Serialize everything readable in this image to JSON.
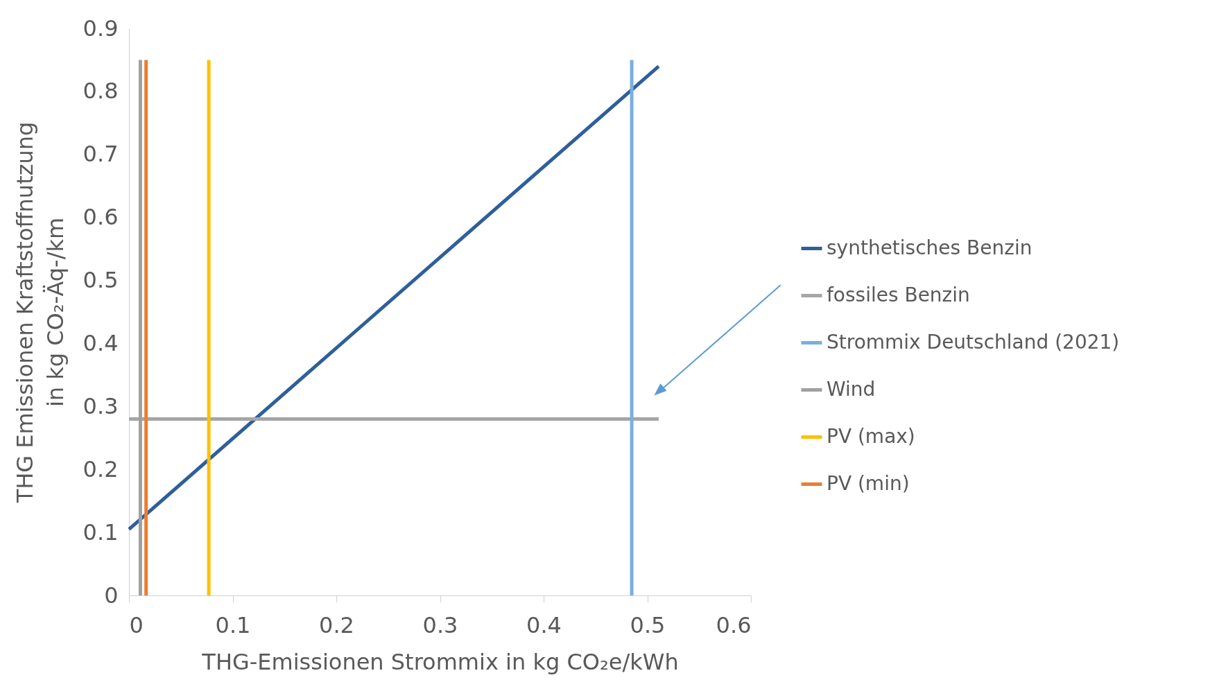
{
  "chart_data": {
    "type": "line",
    "xlabel": "THG-Emissionen Strommix in kg CO₂e/kWh",
    "ylabel": "THG Emissionen Kraftstoffnutzung\nin kg CO₂-Äq-/km",
    "xlim": [
      0,
      0.6
    ],
    "xticks": [
      0,
      0.1,
      0.2,
      0.3,
      0.4,
      0.5,
      0.6
    ],
    "ylim": [
      0,
      0.9
    ],
    "yticks": [
      0,
      0.1,
      0.2,
      0.3,
      0.4,
      0.5,
      0.6,
      0.7,
      0.8,
      0.9
    ],
    "grid": false,
    "legend": "right",
    "marker": "none",
    "line_style": "solid",
    "series": [
      {
        "name": "synthetisches Benzin",
        "color": "#2e5f9a",
        "x": [
          0,
          0.511
        ],
        "values": [
          0.105,
          0.84
        ]
      },
      {
        "name": "fossiles  Benzin",
        "color": "#a5a5a5",
        "x": [
          0,
          0.511
        ],
        "values": [
          0.28,
          0.28
        ]
      },
      {
        "name": "Strommix Deutschland (2021)",
        "color": "#7aaee0",
        "x": [
          0.485,
          0.485
        ],
        "values": [
          0,
          0.85
        ]
      },
      {
        "name": "Wind",
        "color": "#a0a0a0",
        "x": [
          0.011,
          0.011
        ],
        "values": [
          0,
          0.85
        ]
      },
      {
        "name": "PV (max)",
        "color": "#ffc000",
        "x": [
          0.077,
          0.077
        ],
        "values": [
          0,
          0.85
        ]
      },
      {
        "name": "PV (min)",
        "color": "#ed7d31",
        "x": [
          0.0165,
          0.0165
        ],
        "values": [
          0,
          0.85
        ]
      }
    ]
  }
}
